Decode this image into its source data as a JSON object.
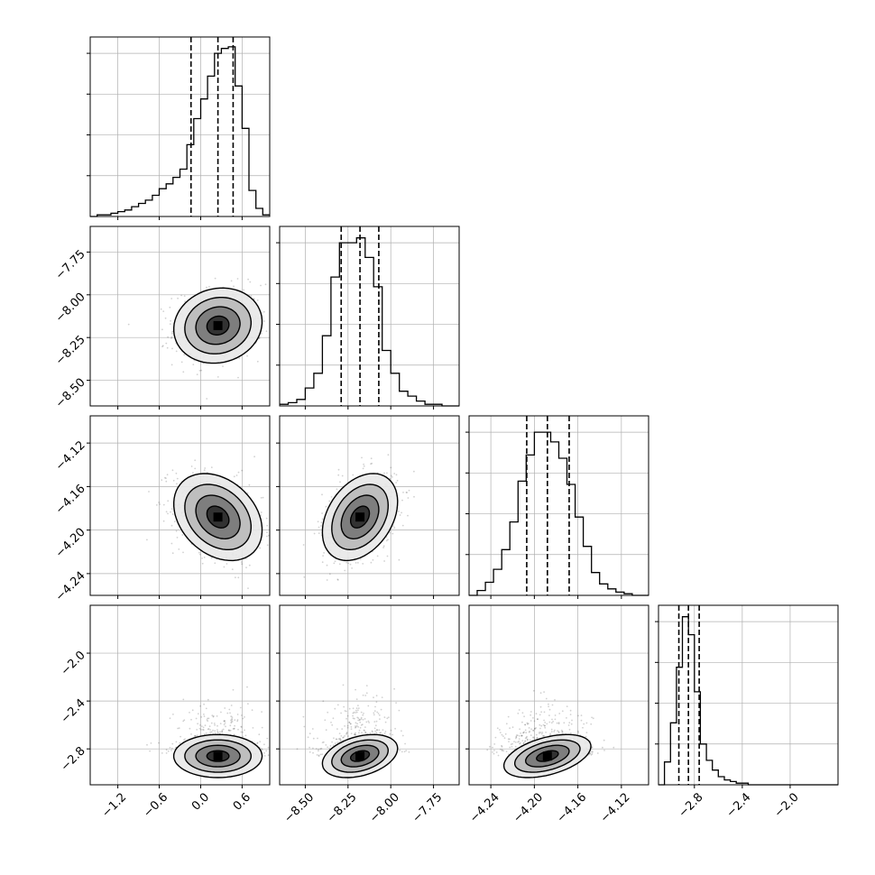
{
  "chart_data": {
    "type": "corner",
    "parameters": 4,
    "grid": true,
    "colors": {
      "line": "#000000",
      "grid": "#b0b0b0",
      "scatter": "#000000",
      "frame": "#000000"
    },
    "variables": [
      {
        "range": [
          -1.6,
          1.0
        ],
        "ticks": [
          -1.2,
          -0.6,
          0.0,
          0.6
        ],
        "tick_labels": [
          "−1.2",
          "−0.6",
          "0.0",
          "0.6"
        ],
        "quantiles": [
          -0.14,
          0.25,
          0.47
        ],
        "center": 0.25,
        "sigma": 0.32
      },
      {
        "range": [
          -8.65,
          -7.6
        ],
        "ticks": [
          -8.5,
          -8.25,
          -8.0,
          -7.75
        ],
        "tick_labels": [
          "−8.50",
          "−8.25",
          "−8.00",
          "−7.75"
        ],
        "quantiles": [
          -8.29,
          -8.18,
          -8.07
        ],
        "center": -8.18,
        "sigma": 0.11
      },
      {
        "range": [
          -4.26,
          -4.095
        ],
        "ticks": [
          -4.24,
          -4.2,
          -4.16,
          -4.12
        ],
        "tick_labels": [
          "−4.24",
          "−4.20",
          "−4.16",
          "−4.12"
        ],
        "quantiles": [
          -4.207,
          -4.188,
          -4.168
        ],
        "center": -4.188,
        "sigma": 0.02
      },
      {
        "range": [
          -3.1,
          -1.6
        ],
        "ticks": [
          -2.8,
          -2.4,
          -2.0
        ],
        "tick_labels": [
          "−2.8",
          "−2.4",
          "−2.0"
        ],
        "y_tick_labels": [
          "−2.0",
          "−2.4",
          "−2.8"
        ],
        "y_ticks": [
          -2.0,
          -2.4,
          -2.8
        ],
        "quantiles": [
          -2.93,
          -2.85,
          -2.76
        ],
        "center": -2.86,
        "sigma": 0.09
      }
    ],
    "histograms": [
      {
        "variable": 0,
        "bin_edges": [
          -1.6,
          -1.5,
          -1.4,
          -1.3,
          -1.2,
          -1.1,
          -1.0,
          -0.9,
          -0.8,
          -0.7,
          -0.6,
          -0.5,
          -0.4,
          -0.3,
          -0.2,
          -0.1,
          0.0,
          0.1,
          0.2,
          0.3,
          0.4,
          0.5,
          0.6,
          0.7,
          0.8,
          0.9,
          1.0
        ],
        "counts": [
          0.0,
          0.01,
          0.01,
          0.02,
          0.03,
          0.04,
          0.06,
          0.08,
          0.1,
          0.13,
          0.17,
          0.2,
          0.24,
          0.29,
          0.44,
          0.6,
          0.72,
          0.86,
          1.0,
          1.03,
          1.04,
          0.8,
          0.54,
          0.16,
          0.05,
          0.01
        ],
        "ymax": 1.1
      },
      {
        "variable": 1,
        "bin_edges": [
          -8.65,
          -8.6,
          -8.55,
          -8.5,
          -8.45,
          -8.4,
          -8.35,
          -8.3,
          -8.25,
          -8.2,
          -8.15,
          -8.1,
          -8.05,
          -8.0,
          -7.95,
          -7.9,
          -7.85,
          -7.8,
          -7.75,
          -7.7,
          -7.65,
          -7.6
        ],
        "counts": [
          0.01,
          0.02,
          0.04,
          0.11,
          0.2,
          0.43,
          0.79,
          1.0,
          1.0,
          1.03,
          0.91,
          0.73,
          0.34,
          0.2,
          0.09,
          0.06,
          0.03,
          0.01,
          0.01,
          0.0,
          0.0
        ],
        "ymax": 1.1
      },
      {
        "variable": 2,
        "bin_edges": [
          -4.26,
          -4.2525,
          -4.245,
          -4.2375,
          -4.23,
          -4.2225,
          -4.215,
          -4.2075,
          -4.2,
          -4.1925,
          -4.185,
          -4.1775,
          -4.17,
          -4.1625,
          -4.155,
          -4.1475,
          -4.14,
          -4.1325,
          -4.125,
          -4.1175,
          -4.11,
          -4.1025,
          -4.095
        ],
        "counts": [
          0.0,
          0.03,
          0.08,
          0.16,
          0.28,
          0.45,
          0.7,
          0.86,
          1.0,
          1.0,
          0.94,
          0.84,
          0.68,
          0.48,
          0.3,
          0.14,
          0.07,
          0.04,
          0.02,
          0.01,
          0.0,
          0.0
        ],
        "ymax": 1.1
      },
      {
        "variable": 3,
        "bin_edges": [
          -3.1,
          -3.05,
          -3.0,
          -2.95,
          -2.9,
          -2.85,
          -2.8,
          -2.75,
          -2.7,
          -2.65,
          -2.6,
          -2.55,
          -2.5,
          -2.45,
          -2.4,
          -2.35,
          -2.3,
          -2.25,
          -2.2,
          -2.15,
          -2.1,
          -2.05,
          -2.0,
          -1.95,
          -1.9,
          -1.85,
          -1.8,
          -1.75,
          -1.7,
          -1.65,
          -1.6
        ],
        "counts": [
          0.0,
          0.14,
          0.38,
          0.72,
          1.03,
          0.92,
          0.57,
          0.25,
          0.15,
          0.09,
          0.05,
          0.03,
          0.02,
          0.01,
          0.01,
          0.0,
          0.0,
          0.0,
          0.0,
          0.0,
          0.0,
          0.0,
          0.0,
          0.0,
          0.0,
          0.0,
          0.0,
          0.0,
          0.0,
          0.0
        ],
        "ymax": 1.1
      }
    ],
    "pairs": [
      {
        "x": 0,
        "y": 1,
        "rho": 0.1
      },
      {
        "x": 0,
        "y": 2,
        "rho": -0.3
      },
      {
        "x": 1,
        "y": 2,
        "rho": 0.35
      },
      {
        "x": 0,
        "y": 3,
        "rho": 0.0
      },
      {
        "x": 1,
        "y": 3,
        "rho": 0.35
      },
      {
        "x": 2,
        "y": 3,
        "rho": 0.45
      }
    ],
    "contour_levels_sigma": [
      0.5,
      1.0,
      1.5,
      2.0
    ],
    "scatter_points_per_panel": 650
  }
}
